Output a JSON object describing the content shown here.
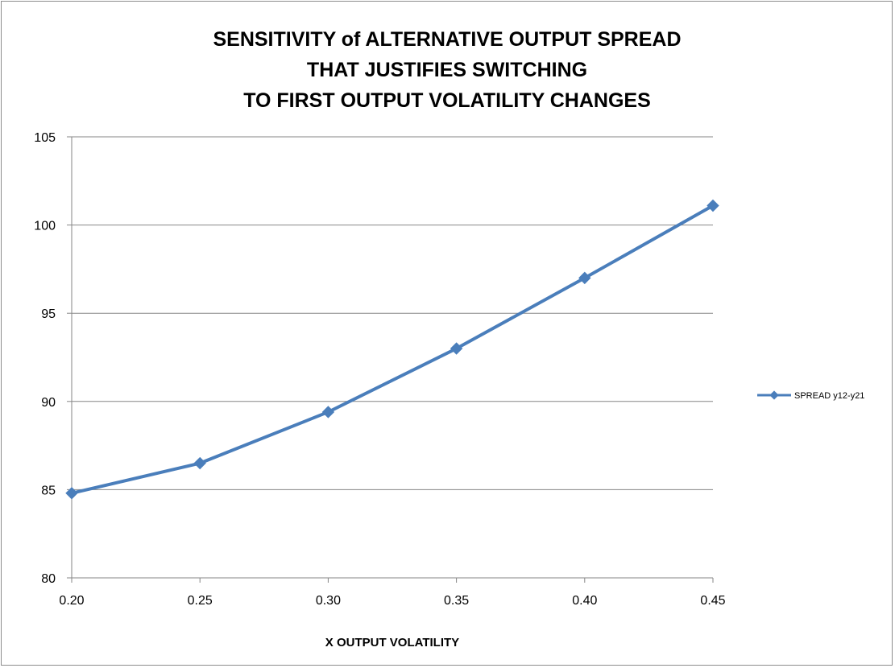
{
  "chart_data": {
    "type": "line",
    "title_lines": [
      "SENSITIVITY of ALTERNATIVE OUTPUT SPREAD",
      "THAT JUSTIFIES SWITCHING",
      "TO FIRST OUTPUT VOLATILITY CHANGES"
    ],
    "xlabel": "X OUTPUT VOLATILITY",
    "ylabel": "",
    "x": [
      0.2,
      0.25,
      0.3,
      0.35,
      0.4,
      0.45
    ],
    "x_tick_labels": [
      "0.20",
      "0.25",
      "0.30",
      "0.35",
      "0.40",
      "0.45"
    ],
    "series": [
      {
        "name": "SPREAD y12-y21",
        "values": [
          84.8,
          86.5,
          89.4,
          93.0,
          97.0,
          101.1
        ],
        "color": "#4a7ebb"
      }
    ],
    "ylim": [
      80,
      105
    ],
    "y_ticks": [
      80,
      85,
      90,
      95,
      100,
      105
    ],
    "grid": {
      "horizontal": true,
      "vertical": false
    },
    "legend_position": "right",
    "colors": {
      "line": "#4a7ebb",
      "grid": "#868686",
      "axis": "#868686"
    }
  }
}
